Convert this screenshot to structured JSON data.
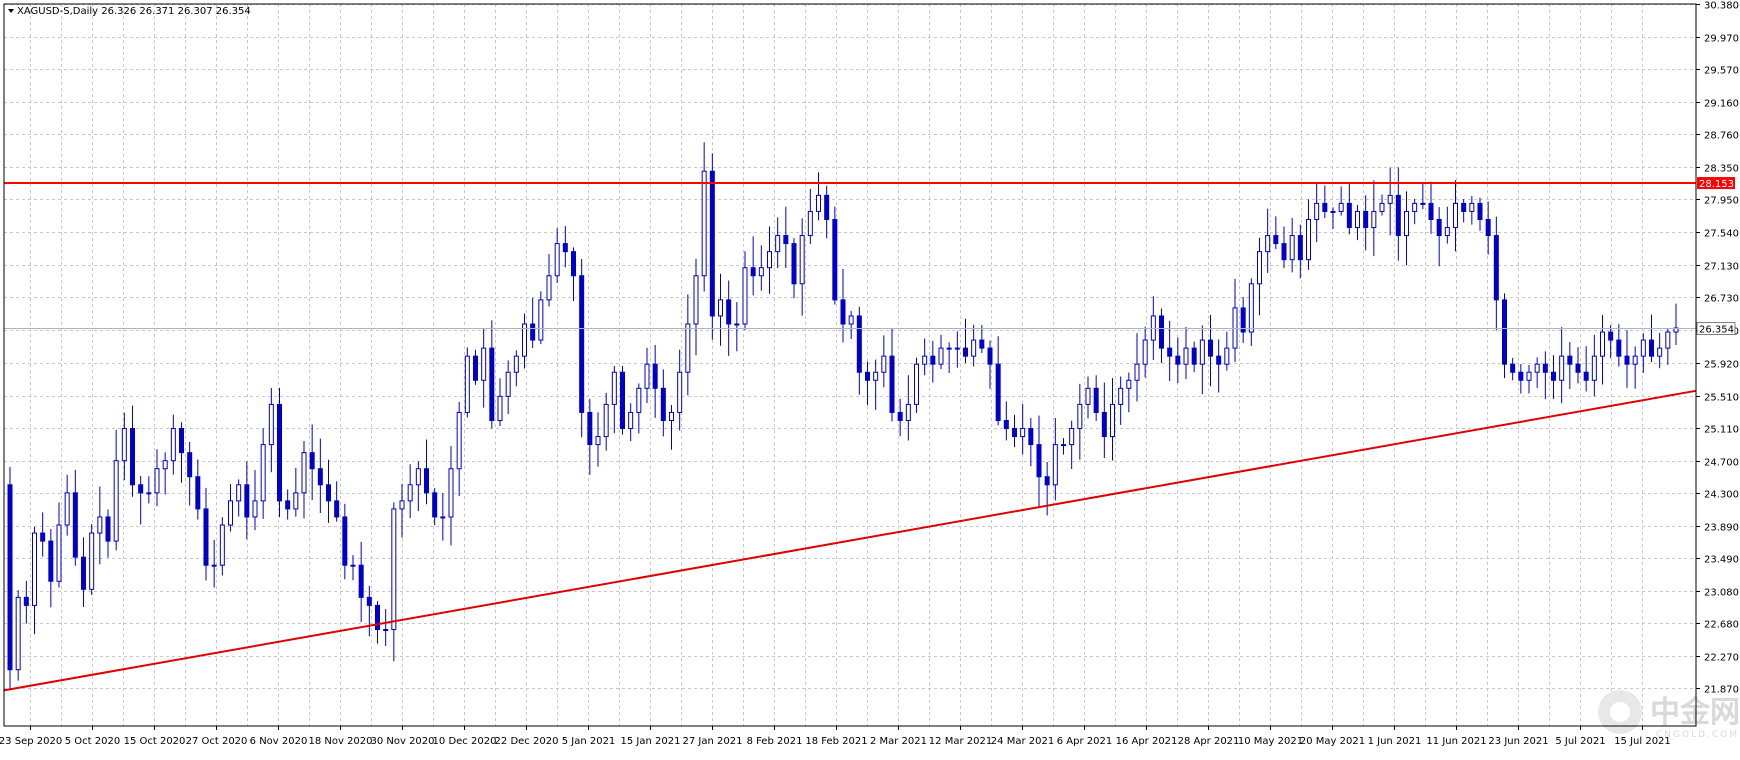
{
  "header": {
    "symbol_text": "XAGUSD-S,Daily  26.326 26.371 26.307 26.354"
  },
  "watermark": {
    "text": "中金网",
    "subtext": "CNGOLD.COM"
  },
  "colors": {
    "candle": "#0000c8",
    "grid": "#c8c8c8",
    "resistance": "#ff0000",
    "trend": "#e00000",
    "current_price_line": "#a8b4c8",
    "background": "#ffffff"
  },
  "chart_data": {
    "type": "candlestick",
    "symbol": "XAGUSD-S",
    "timeframe": "Daily",
    "last_bar": {
      "open": 26.326,
      "high": 26.371,
      "low": 26.307,
      "close": 26.354
    },
    "ylim": [
      21.4,
      30.38
    ],
    "y_ticks": [
      "30.380",
      "29.970",
      "29.570",
      "29.160",
      "28.760",
      "28.350",
      "27.950",
      "27.540",
      "27.130",
      "26.730",
      "26.320",
      "25.920",
      "25.510",
      "25.110",
      "24.700",
      "24.300",
      "23.890",
      "23.490",
      "23.080",
      "22.680",
      "22.270",
      "21.870"
    ],
    "x_tick_labels": [
      "23 Sep 2020",
      "5 Oct 2020",
      "15 Oct 2020",
      "27 Oct 2020",
      "6 Nov 2020",
      "18 Nov 2020",
      "30 Nov 2020",
      "10 Dec 2020",
      "22 Dec 2020",
      "5 Jan 2021",
      "15 Jan 2021",
      "27 Jan 2021",
      "8 Feb 2021",
      "18 Feb 2021",
      "2 Mar 2021",
      "12 Mar 2021",
      "24 Mar 2021",
      "6 Apr 2021",
      "16 Apr 2021",
      "28 Apr 2021",
      "10 May 2021",
      "20 May 2021",
      "1 Jun 2021",
      "11 Jun 2021",
      "23 Jun 2021",
      "5 Jul 2021",
      "15 Jul 2021"
    ],
    "resistance_level": {
      "value": 28.153,
      "label": "28.153"
    },
    "current_price": {
      "value": 26.354,
      "label": "26.354"
    },
    "trendline": {
      "start_date": "23 Sep 2020",
      "start_value": 21.9,
      "end_date": "15 Jul 2021",
      "end_value": 25.45
    },
    "closes": [
      22.1,
      23.0,
      22.9,
      23.8,
      23.7,
      23.2,
      23.9,
      24.3,
      23.5,
      23.1,
      23.8,
      24.0,
      23.7,
      24.7,
      25.1,
      24.4,
      24.3,
      24.3,
      24.6,
      24.7,
      25.1,
      24.8,
      24.5,
      24.1,
      23.4,
      23.4,
      23.9,
      24.2,
      24.4,
      24.0,
      24.2,
      24.9,
      25.4,
      24.2,
      24.1,
      24.3,
      24.8,
      24.6,
      24.4,
      24.2,
      24.0,
      23.4,
      23.4,
      23.0,
      22.9,
      22.6,
      22.6,
      24.1,
      24.2,
      24.4,
      24.6,
      24.3,
      24.0,
      24.0,
      24.6,
      25.3,
      26.0,
      25.7,
      26.1,
      25.2,
      25.5,
      25.8,
      26.0,
      26.4,
      26.2,
      26.7,
      27.0,
      27.4,
      27.3,
      27.0,
      25.3,
      24.9,
      25.0,
      25.4,
      25.8,
      25.1,
      25.3,
      25.6,
      25.9,
      25.6,
      25.2,
      25.3,
      25.8,
      26.4,
      27.0,
      28.3,
      26.5,
      26.7,
      26.4,
      26.4,
      27.1,
      27.0,
      27.1,
      27.3,
      27.5,
      27.4,
      26.9,
      27.5,
      27.8,
      28.0,
      27.7,
      26.7,
      26.4,
      26.5,
      25.8,
      25.7,
      25.8,
      26.0,
      25.3,
      25.2,
      25.4,
      25.9,
      26.0,
      25.9,
      26.1,
      26.1,
      26.1,
      26.0,
      26.2,
      26.1,
      25.9,
      25.2,
      25.1,
      25.0,
      25.1,
      24.9,
      24.5,
      24.4,
      24.9,
      24.9,
      25.1,
      25.4,
      25.6,
      25.3,
      25.0,
      25.4,
      25.6,
      25.7,
      25.9,
      26.2,
      26.5,
      26.1,
      26.0,
      25.9,
      26.1,
      25.9,
      26.2,
      26.0,
      25.9,
      26.1,
      26.6,
      26.3,
      26.9,
      27.3,
      27.5,
      27.4,
      27.2,
      27.5,
      27.2,
      27.7,
      27.9,
      27.8,
      27.8,
      27.9,
      27.6,
      27.8,
      27.6,
      27.8,
      27.9,
      28.0,
      27.5,
      27.8,
      27.9,
      27.9,
      27.7,
      27.5,
      27.6,
      27.9,
      27.8,
      27.9,
      27.7,
      27.5,
      26.7,
      25.9,
      25.8,
      25.7,
      25.8,
      25.9,
      25.8,
      25.7,
      26.0,
      25.9,
      25.8,
      25.7,
      26.0,
      26.3,
      26.2,
      26.0,
      25.9,
      26.0,
      26.2,
      26.0,
      26.1,
      26.3,
      26.35
    ]
  }
}
